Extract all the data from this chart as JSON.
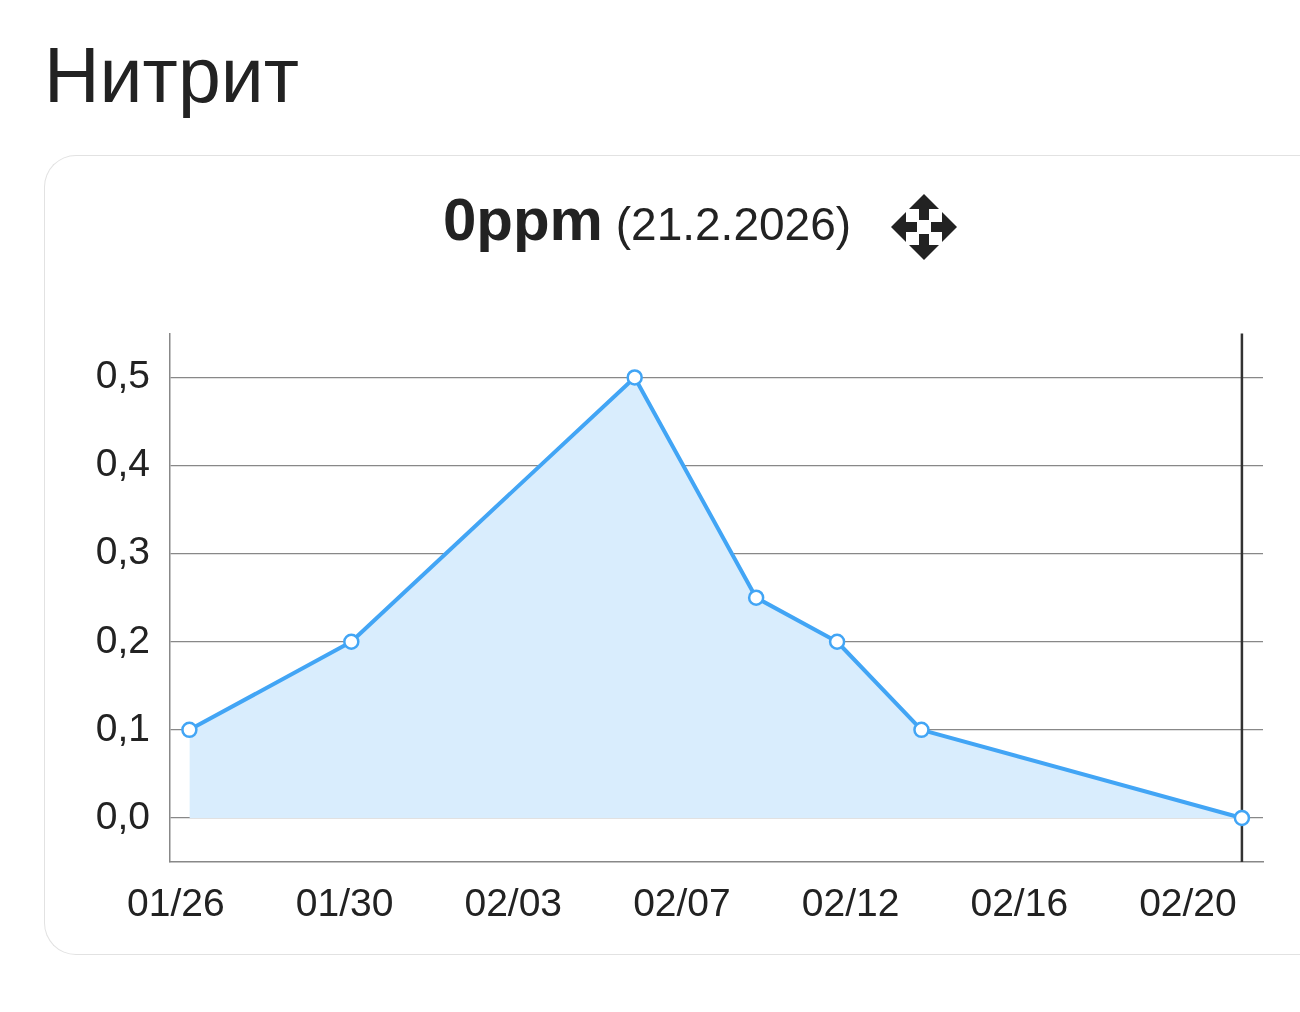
{
  "chart_data": {
    "type": "area",
    "title": "Нитрит",
    "subtitle": "0ppm (21.2.2026)",
    "x": [
      "2026-01-26T08:00",
      "2026-01-30T08:00",
      "2026-02-06T08:00",
      "2026-02-09T08:00",
      "2026-02-11T08:00",
      "2026-02-13T10:00",
      "2026-02-21T08:00"
    ],
    "series": [
      {
        "color": "#42a5f5",
        "values": [
          0.1,
          0.2,
          0.5,
          0.25,
          0.2,
          0.1,
          0
        ]
      }
    ],
    "xlim": [
      "2026-01-25T20:30",
      "2026-02-21T20:30"
    ],
    "xticks": [
      {
        "value": "2026-01-26T00:00",
        "label": "01/26"
      },
      {
        "value": "2026-01-30T04:00",
        "label": "01/30"
      },
      {
        "value": "2026-02-03T08:00",
        "label": "02/03"
      },
      {
        "value": "2026-02-07T12:00",
        "label": "02/07"
      },
      {
        "value": "2026-02-11T16:00",
        "label": "02/12"
      },
      {
        "value": "2026-02-15T20:00",
        "label": "02/16"
      },
      {
        "value": "2026-02-20T00:00",
        "label": "02/20"
      }
    ],
    "ylim": [
      -0.05,
      0.55
    ],
    "yticks": [
      {
        "value": 0,
        "label": "0,0"
      },
      {
        "value": 0.1,
        "label": "0,1"
      },
      {
        "value": 0.2,
        "label": "0,2"
      },
      {
        "value": 0.3,
        "label": "0,3"
      },
      {
        "value": 0.4,
        "label": "0,4"
      },
      {
        "value": 0.5,
        "label": "0,5"
      }
    ],
    "grid": "y",
    "marker": "circle",
    "ref_lines": [
      {
        "axis": "x",
        "value": "2026-02-21T08:00",
        "color": "#333333"
      }
    ]
  }
}
